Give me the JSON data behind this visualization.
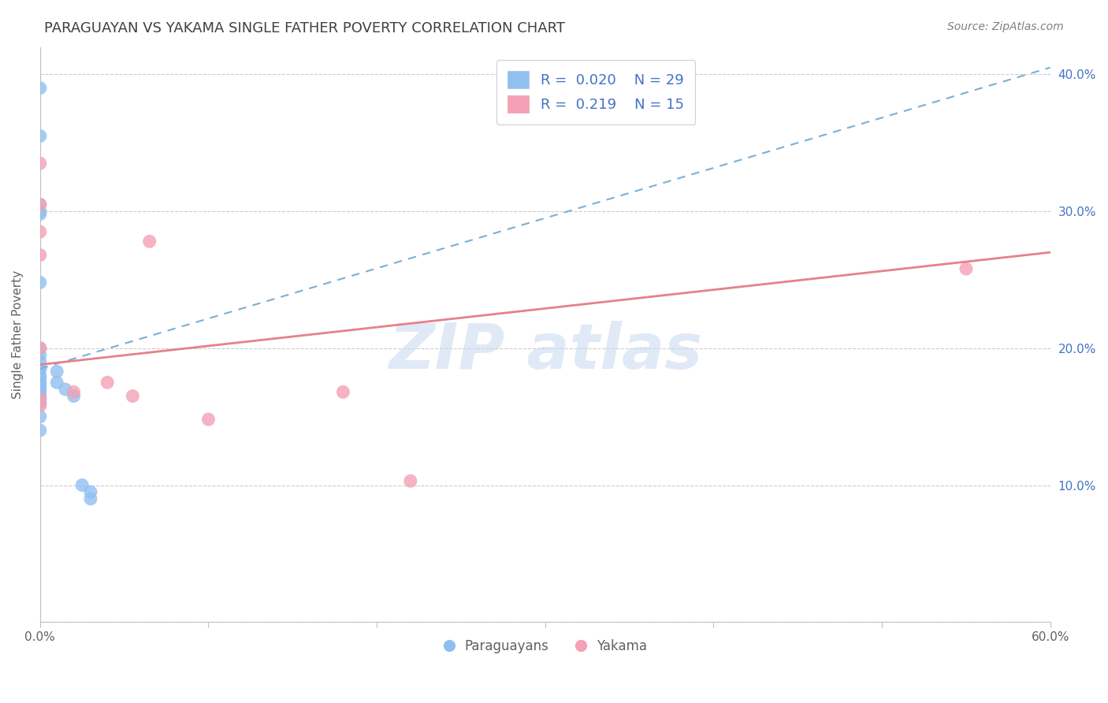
{
  "title": "PARAGUAYAN VS YAKAMA SINGLE FATHER POVERTY CORRELATION CHART",
  "source": "Source: ZipAtlas.com",
  "ylabel": "Single Father Poverty",
  "xlabel": "",
  "xlim": [
    0.0,
    0.6
  ],
  "ylim": [
    0.0,
    0.42
  ],
  "paraguayan_R": 0.02,
  "paraguayan_N": 29,
  "yakama_R": 0.219,
  "yakama_N": 15,
  "paraguayan_color": "#90c0f0",
  "yakama_color": "#f4a0b5",
  "paraguayan_line_color": "#7aafd4",
  "yakama_line_color": "#e8808a",
  "paraguayan_x": [
    0.0,
    0.0,
    0.0,
    0.0,
    0.0,
    0.0,
    0.0,
    0.0,
    0.0,
    0.0,
    0.0,
    0.0,
    0.0,
    0.0,
    0.0,
    0.0,
    0.0,
    0.0,
    0.0,
    0.0,
    0.0,
    0.0,
    0.01,
    0.01,
    0.015,
    0.02,
    0.025,
    0.03,
    0.03
  ],
  "paraguayan_y": [
    0.39,
    0.355,
    0.305,
    0.298,
    0.3,
    0.248,
    0.2,
    0.195,
    0.19,
    0.185,
    0.185,
    0.18,
    0.178,
    0.175,
    0.173,
    0.17,
    0.168,
    0.165,
    0.163,
    0.16,
    0.15,
    0.14,
    0.183,
    0.175,
    0.17,
    0.165,
    0.1,
    0.095,
    0.09
  ],
  "yakama_x": [
    0.0,
    0.0,
    0.0,
    0.0,
    0.0,
    0.0,
    0.0,
    0.02,
    0.04,
    0.055,
    0.065,
    0.1,
    0.18,
    0.22,
    0.55
  ],
  "yakama_y": [
    0.335,
    0.305,
    0.285,
    0.268,
    0.2,
    0.163,
    0.158,
    0.168,
    0.175,
    0.165,
    0.278,
    0.148,
    0.168,
    0.103,
    0.258
  ],
  "par_line_x0": 0.0,
  "par_line_y0": 0.185,
  "par_line_x1": 0.6,
  "par_line_y1": 0.405,
  "yak_line_x0": 0.0,
  "yak_line_y0": 0.188,
  "yak_line_x1": 0.6,
  "yak_line_y1": 0.27,
  "background_color": "#ffffff",
  "grid_color": "#cccccc",
  "title_color": "#404040",
  "legend_text_color": "#4472c4",
  "right_yticklabel_color": "#4472c4"
}
